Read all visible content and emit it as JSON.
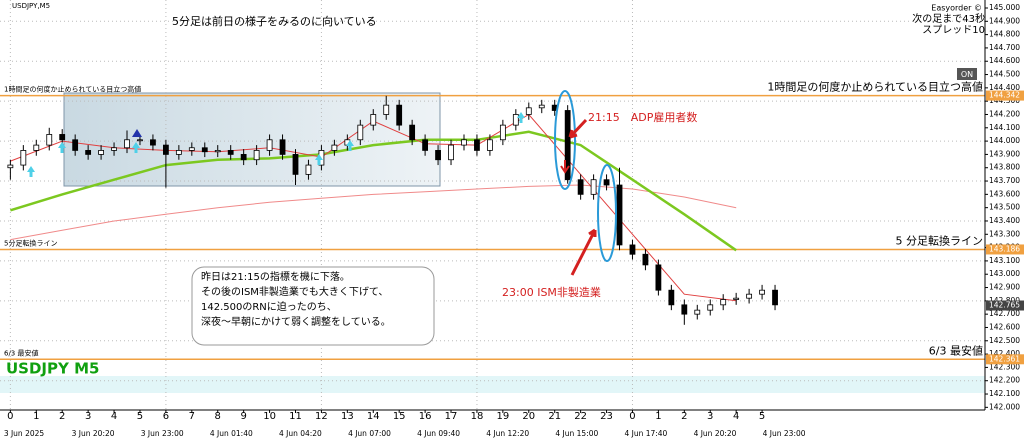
{
  "chart_data": {
    "type": "candlestick",
    "symbol": "USDJPY,M5",
    "watermark": "USDJPY M5",
    "x": [
      0,
      0.5,
      1,
      1.5,
      2,
      2.5,
      3,
      3.5,
      4,
      4.5,
      5,
      5.5,
      6,
      6.5,
      7,
      7.5,
      8,
      8.5,
      9,
      9.5,
      10,
      10.5,
      11,
      11.5,
      12,
      12.5,
      13,
      13.5,
      14,
      14.5,
      15,
      15.5,
      16,
      16.5,
      17,
      17.5,
      18,
      18.5,
      19,
      19.5,
      20,
      20.5,
      21,
      21.5,
      22,
      22.5,
      23,
      23.5,
      24,
      24.5,
      25,
      25.5,
      26,
      26.5,
      27,
      27.5,
      28,
      28.5,
      29,
      29.5
    ],
    "open": [
      143.8,
      143.82,
      143.93,
      143.97,
      144.05,
      144.01,
      143.93,
      143.9,
      143.93,
      143.95,
      144.01,
      144.01,
      143.97,
      143.9,
      143.93,
      143.95,
      143.92,
      143.93,
      143.9,
      143.86,
      143.93,
      144.01,
      143.9,
      143.75,
      143.82,
      143.93,
      143.97,
      144.01,
      144.12,
      144.2,
      144.27,
      144.12,
      144.01,
      143.93,
      143.86,
      143.97,
      144.01,
      143.93,
      144.01,
      144.12,
      144.2,
      144.25,
      144.27,
      144.23,
      143.71,
      143.6,
      143.71,
      143.67,
      143.22,
      143.15,
      143.07,
      142.88,
      142.77,
      142.7,
      142.73,
      142.77,
      142.81,
      142.82,
      142.85,
      142.88
    ],
    "high": [
      143.86,
      143.97,
      144.01,
      144.1,
      144.09,
      144.05,
      143.97,
      143.97,
      143.99,
      144.08,
      144.05,
      144.05,
      144.01,
      143.97,
      143.99,
      143.99,
      143.97,
      143.97,
      143.94,
      143.97,
      144.05,
      144.05,
      143.94,
      143.86,
      143.97,
      144.01,
      144.05,
      144.16,
      144.24,
      144.34,
      144.31,
      144.16,
      144.05,
      143.97,
      144.01,
      144.05,
      144.05,
      144.05,
      144.16,
      144.24,
      144.29,
      144.31,
      144.31,
      144.27,
      143.75,
      143.75,
      143.75,
      143.8,
      143.26,
      143.19,
      143.11,
      142.92,
      142.81,
      142.77,
      142.81,
      142.85,
      142.86,
      142.89,
      142.92,
      142.92
    ],
    "low": [
      143.71,
      143.78,
      143.89,
      143.93,
      143.97,
      143.89,
      143.86,
      143.86,
      143.89,
      143.91,
      143.97,
      143.93,
      143.65,
      143.86,
      143.89,
      143.88,
      143.88,
      143.86,
      143.82,
      143.82,
      143.89,
      143.86,
      143.67,
      143.71,
      143.78,
      143.89,
      143.93,
      143.97,
      144.08,
      144.16,
      144.08,
      143.97,
      143.89,
      143.82,
      143.82,
      143.93,
      143.89,
      143.89,
      143.97,
      144.08,
      144.16,
      144.21,
      144.19,
      143.68,
      143.56,
      143.56,
      143.63,
      143.18,
      143.11,
      143.03,
      142.84,
      142.73,
      142.62,
      142.66,
      142.69,
      142.73,
      142.77,
      142.78,
      142.81,
      142.73
    ],
    "close": [
      143.82,
      143.93,
      143.97,
      144.05,
      144.01,
      143.93,
      143.9,
      143.93,
      143.95,
      144.01,
      144.01,
      143.97,
      143.9,
      143.93,
      143.95,
      143.92,
      143.93,
      143.9,
      143.86,
      143.93,
      144.01,
      143.9,
      143.75,
      143.82,
      143.93,
      143.97,
      144.01,
      144.12,
      144.2,
      144.27,
      144.12,
      144.01,
      143.93,
      143.86,
      143.97,
      144.01,
      143.93,
      144.01,
      144.12,
      144.2,
      144.25,
      144.27,
      144.23,
      143.71,
      143.6,
      143.71,
      143.67,
      143.22,
      143.15,
      143.07,
      142.88,
      142.77,
      142.7,
      142.73,
      142.77,
      142.81,
      142.82,
      142.85,
      142.88,
      142.77
    ],
    "up_color": "#ffffff",
    "down_color": "#000000",
    "ma_x": [
      0,
      2,
      4,
      6,
      8,
      10,
      12,
      14,
      16,
      18,
      20,
      22,
      24,
      26,
      28
    ],
    "moving_averages": [
      {
        "color": "#f08a8a",
        "values": [
          143.26,
          143.33,
          143.4,
          143.45,
          143.5,
          143.54,
          143.57,
          143.6,
          143.62,
          143.64,
          143.66,
          143.67,
          143.64,
          143.58,
          143.5
        ]
      },
      {
        "color": "#7cc820",
        "values": [
          143.48,
          143.6,
          143.71,
          143.82,
          143.86,
          143.87,
          143.9,
          143.97,
          144.01,
          144.01,
          144.07,
          143.97,
          143.71,
          143.45,
          143.18
        ]
      },
      {
        "color": "#e04040",
        "values": [
          143.85,
          144.0,
          143.95,
          143.93,
          143.92,
          143.95,
          143.88,
          144.15,
          143.98,
          143.97,
          144.2,
          143.75,
          143.3,
          142.85,
          142.8
        ]
      }
    ],
    "xlim": [
      -0.4,
      37.6
    ],
    "ylim": [
      141.98,
      145.06
    ],
    "xticks": [
      0,
      1,
      2,
      3,
      4,
      5,
      6,
      7,
      8,
      9,
      10,
      11,
      12,
      13,
      14,
      15,
      16,
      17,
      18,
      19,
      20,
      21,
      22,
      23,
      {
        "value": 24,
        "label": "0"
      },
      {
        "value": 25,
        "label": "1"
      },
      {
        "value": 26,
        "label": "2"
      },
      {
        "value": 27,
        "label": "3"
      },
      {
        "value": 28,
        "label": "4"
      },
      {
        "value": 29,
        "label": "5"
      }
    ],
    "x_date_labels": [
      "3 Jun 2025",
      "3 Jun 20:20",
      "3 Jun 23:00",
      "4 Jun 01:40",
      "4 Jun 04:20",
      "4 Jun 07:00",
      "4 Jun 09:40",
      "4 Jun 12:20",
      "4 Jun 15:00",
      "4 Jun 17:40",
      "4 Jun 20:20",
      "4 Jun 23:00"
    ],
    "yticks": [
      {
        "value": 145.0,
        "label": "145.000"
      },
      {
        "value": 144.9,
        "label": "144.900"
      },
      {
        "value": 144.8,
        "label": "144.800"
      },
      {
        "value": 144.7,
        "label": "144.700"
      },
      {
        "value": 144.6,
        "label": "144.600"
      },
      {
        "value": 144.5,
        "label": "144.500"
      },
      {
        "value": 144.4,
        "label": "144.400"
      },
      {
        "value": 144.3,
        "label": "144.300"
      },
      {
        "value": 144.2,
        "label": "144.200"
      },
      {
        "value": 144.1,
        "label": "144.100"
      },
      {
        "value": 144.0,
        "label": "144.000"
      },
      {
        "value": 143.9,
        "label": "143.900"
      },
      {
        "value": 143.8,
        "label": "143.800"
      },
      {
        "value": 143.7,
        "label": "143.700"
      },
      {
        "value": 143.6,
        "label": "143.600"
      },
      {
        "value": 143.5,
        "label": "143.500"
      },
      {
        "value": 143.4,
        "label": "143.400"
      },
      {
        "value": 143.3,
        "label": "143.300"
      },
      {
        "value": 143.2,
        "label": "143.200"
      },
      {
        "value": 143.1,
        "label": "143.100"
      },
      {
        "value": 143.0,
        "label": "143.000"
      },
      {
        "value": 142.9,
        "label": "142.900"
      },
      {
        "value": 142.8,
        "label": "142.800"
      },
      {
        "value": 142.7,
        "label": "142.700"
      },
      {
        "value": 142.6,
        "label": "142.600"
      },
      {
        "value": 142.5,
        "label": "142.500"
      },
      {
        "value": 142.4,
        "label": "142.400"
      },
      {
        "value": 142.3,
        "label": "142.300"
      },
      {
        "value": 142.2,
        "label": "142.200"
      },
      {
        "value": 142.1,
        "label": "142.100"
      },
      {
        "value": 142.0,
        "label": "142.000"
      }
    ],
    "grid": true,
    "levels": [
      {
        "value": 144.342,
        "color": "#f0a040",
        "left_label": "1時間足の何度か止められている目立つ高値",
        "right_label": "1時間足の何度か止められている目立つ高値"
      },
      {
        "value": 143.186,
        "color": "#f0a040",
        "left_label": "5分足転換ライン",
        "right_label": "5 分足転換ライン"
      },
      {
        "value": 142.361,
        "color": "#f0a040",
        "left_label": "6/3 最安値",
        "right_label": "6/3 最安値"
      }
    ],
    "current_price": 142.765
  },
  "ui": {
    "headline": "5分足は前日の様子をみるのに向いている",
    "easyorder": "Easyorder ©",
    "next_bar": "次の足まで43秒",
    "spread": "スプレッド10",
    "on_button": "ON",
    "event_1": "21:15　ADP雇用者数",
    "event_2": "23:00 ISM非製造業",
    "note": [
      "昨日は21:15の指標を機に下落。",
      "その後のISM非製造業でも大きく下げて、",
      "142.500のRNに迫ったのち、",
      "深夜～早朝にかけて弱く調整をしている。"
    ]
  }
}
